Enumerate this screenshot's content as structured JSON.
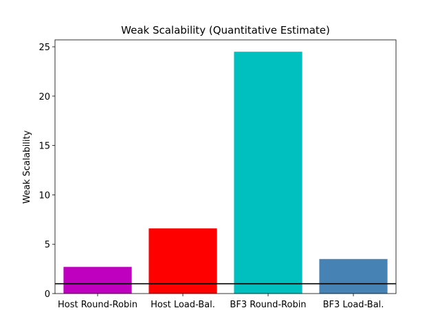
{
  "chart_data": {
    "type": "bar",
    "title": "Weak Scalability (Quantitative Estimate)",
    "xlabel": "",
    "ylabel": "Weak Scalability",
    "categories": [
      "Host Round-Robin",
      "Host Load-Bal.",
      "BF3 Round-Robin",
      "BF3 Load-Bal."
    ],
    "values": [
      2.7,
      6.6,
      24.5,
      3.5
    ],
    "colors": [
      "#bf00bf",
      "#ff0000",
      "#00bfbf",
      "#4682b4"
    ],
    "ylim": [
      0,
      25.7
    ],
    "yticks": [
      0,
      5,
      10,
      15,
      20,
      25
    ],
    "reference_line": {
      "y": 1,
      "color": "#000000"
    },
    "grid": false,
    "legend": "none"
  }
}
